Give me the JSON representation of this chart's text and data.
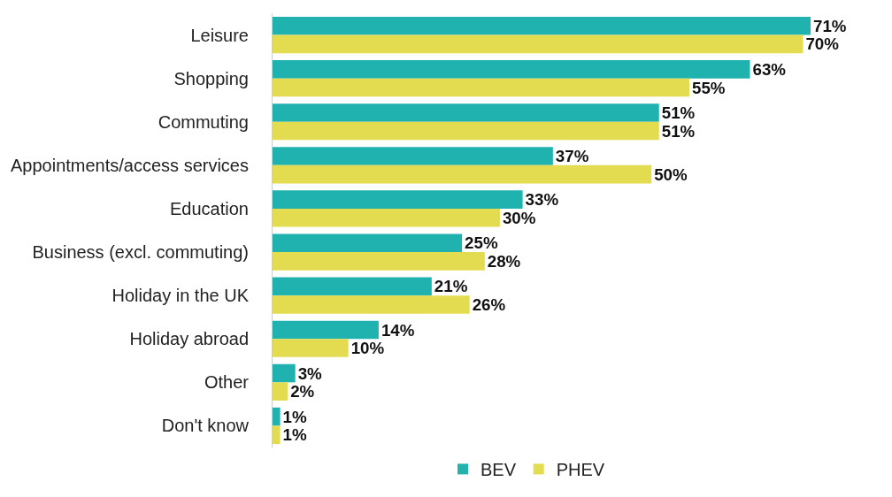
{
  "chart_data": {
    "type": "bar",
    "orientation": "horizontal",
    "categories": [
      "Leisure",
      "Shopping",
      "Commuting",
      "Appointments/access services",
      "Education",
      "Business (excl. commuting)",
      "Holiday in the UK",
      "Holiday abroad",
      "Other",
      "Don't know"
    ],
    "series": [
      {
        "name": "BEV",
        "color": "#20b2ae",
        "values": [
          71,
          63,
          51,
          37,
          33,
          25,
          21,
          14,
          3,
          1
        ],
        "value_labels": [
          "71%",
          "63%",
          "51%",
          "37%",
          "33%",
          "25%",
          "21%",
          "14%",
          "3%",
          "1%"
        ]
      },
      {
        "name": "PHEV",
        "color": "#e3dc50",
        "values": [
          70,
          55,
          51,
          50,
          30,
          28,
          26,
          10,
          2,
          1
        ],
        "value_labels": [
          "70%",
          "55%",
          "51%",
          "50%",
          "30%",
          "28%",
          "26%",
          "10%",
          "2%",
          "1%"
        ]
      }
    ],
    "tick_labels": "y",
    "legend": "bottom"
  }
}
